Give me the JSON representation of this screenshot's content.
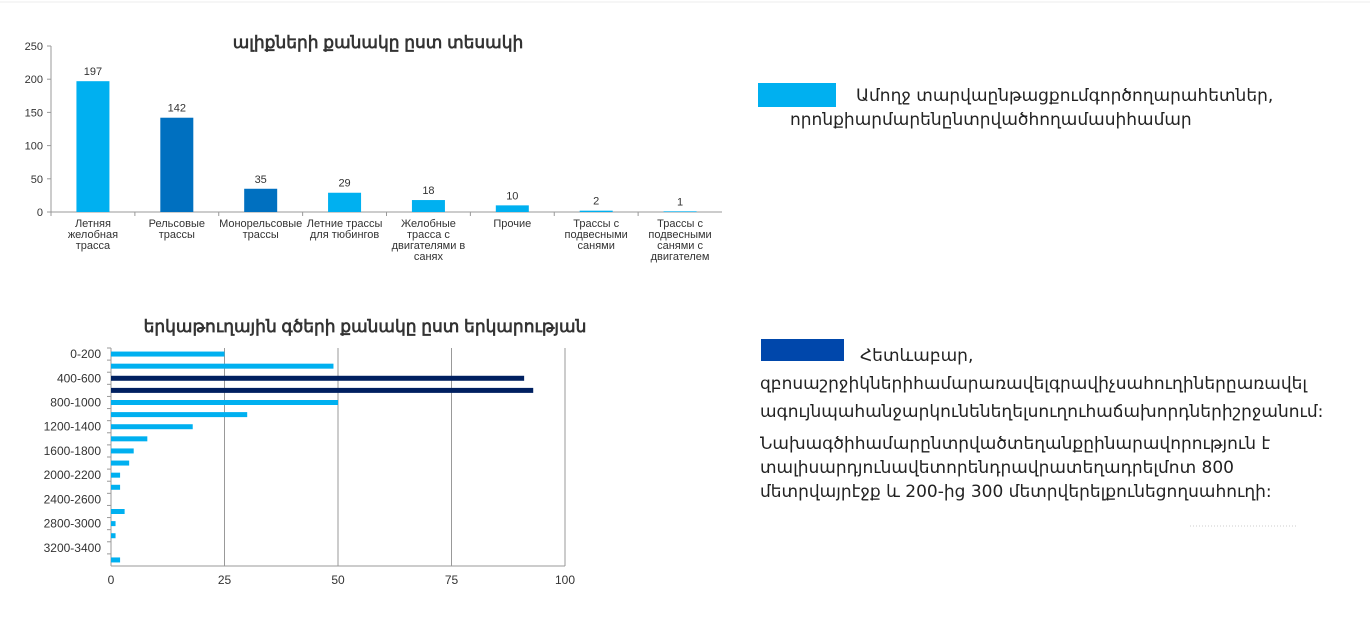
{
  "chart_data": [
    {
      "type": "bar",
      "title": "ալիքների քանակը ըստ տեսակի",
      "categories": [
        "Летняя желобная трасса",
        "Рельсовые трассы",
        "Монорельсовые трассы",
        "Летние трассы для тюбингов",
        "Желобные трасса с двигателями в санях",
        "Прочие",
        "Трассы с подвесными санями",
        "Трассы с подвесными санями с двигателем"
      ],
      "values": [
        197,
        142,
        35,
        29,
        18,
        10,
        2,
        1
      ],
      "colors": [
        "#00b0f0",
        "#0070c0",
        "#0070c0",
        "#00b0f0",
        "#00b0f0",
        "#00b0f0",
        "#00b0f0",
        "#00b0f0"
      ],
      "ylim": [
        0,
        250
      ],
      "yticks": [
        0,
        50,
        100,
        150,
        200,
        250
      ],
      "grid": false
    },
    {
      "type": "hbar",
      "title": "երկաթուղային գծերի քանակը ըստ երկարության",
      "categories": [
        "0-200",
        null,
        "400-600",
        null,
        "800-1000",
        null,
        "1200-1400",
        null,
        "1600-1800",
        null,
        "2000-2200",
        null,
        "2400-2600",
        null,
        "2800-3000",
        null,
        "3200-3400",
        null
      ],
      "values": [
        25,
        49,
        91,
        93,
        50,
        30,
        18,
        8,
        5,
        4,
        2,
        2,
        0,
        3,
        1,
        1,
        0,
        2
      ],
      "colors": [
        "#00b0f0",
        "#00b0f0",
        "#002060",
        "#002060",
        "#00b0f0",
        "#00b0f0",
        "#00b0f0",
        "#00b0f0",
        "#00b0f0",
        "#00b0f0",
        "#00b0f0",
        "#00b0f0",
        "#00b0f0",
        "#00b0f0",
        "#00b0f0",
        "#00b0f0",
        "#00b0f0",
        "#00b0f0"
      ],
      "xlim": [
        0,
        100
      ],
      "xticks": [
        0,
        25,
        50,
        75,
        100
      ],
      "grid": true
    }
  ],
  "notes": [
    {
      "lines": [
        "Ամողջ տարվաընթացքումգործողարահետներ,",
        "որոնքիարմարենընտրվածհողամասիհամար"
      ]
    },
    {
      "lines": [
        "Հետևաբար,",
        "զբոսաշրջիկներիհամարառավելգրավիչսահուղիներըառավել",
        "ագույնպահանջարկունենեղելսուղուհաճախորդներիշրջանում:"
      ]
    },
    {
      "lines": [
        "Նախագծիհամարընտրվածտեղանքըինարավորություն է",
        "տալիսարդյունավետորենդրավրատեղադրելմոտ 800",
        "մետրվայրէջք և 200-ից 300 մետրվերելքունեցողսահուղի:"
      ]
    }
  ]
}
